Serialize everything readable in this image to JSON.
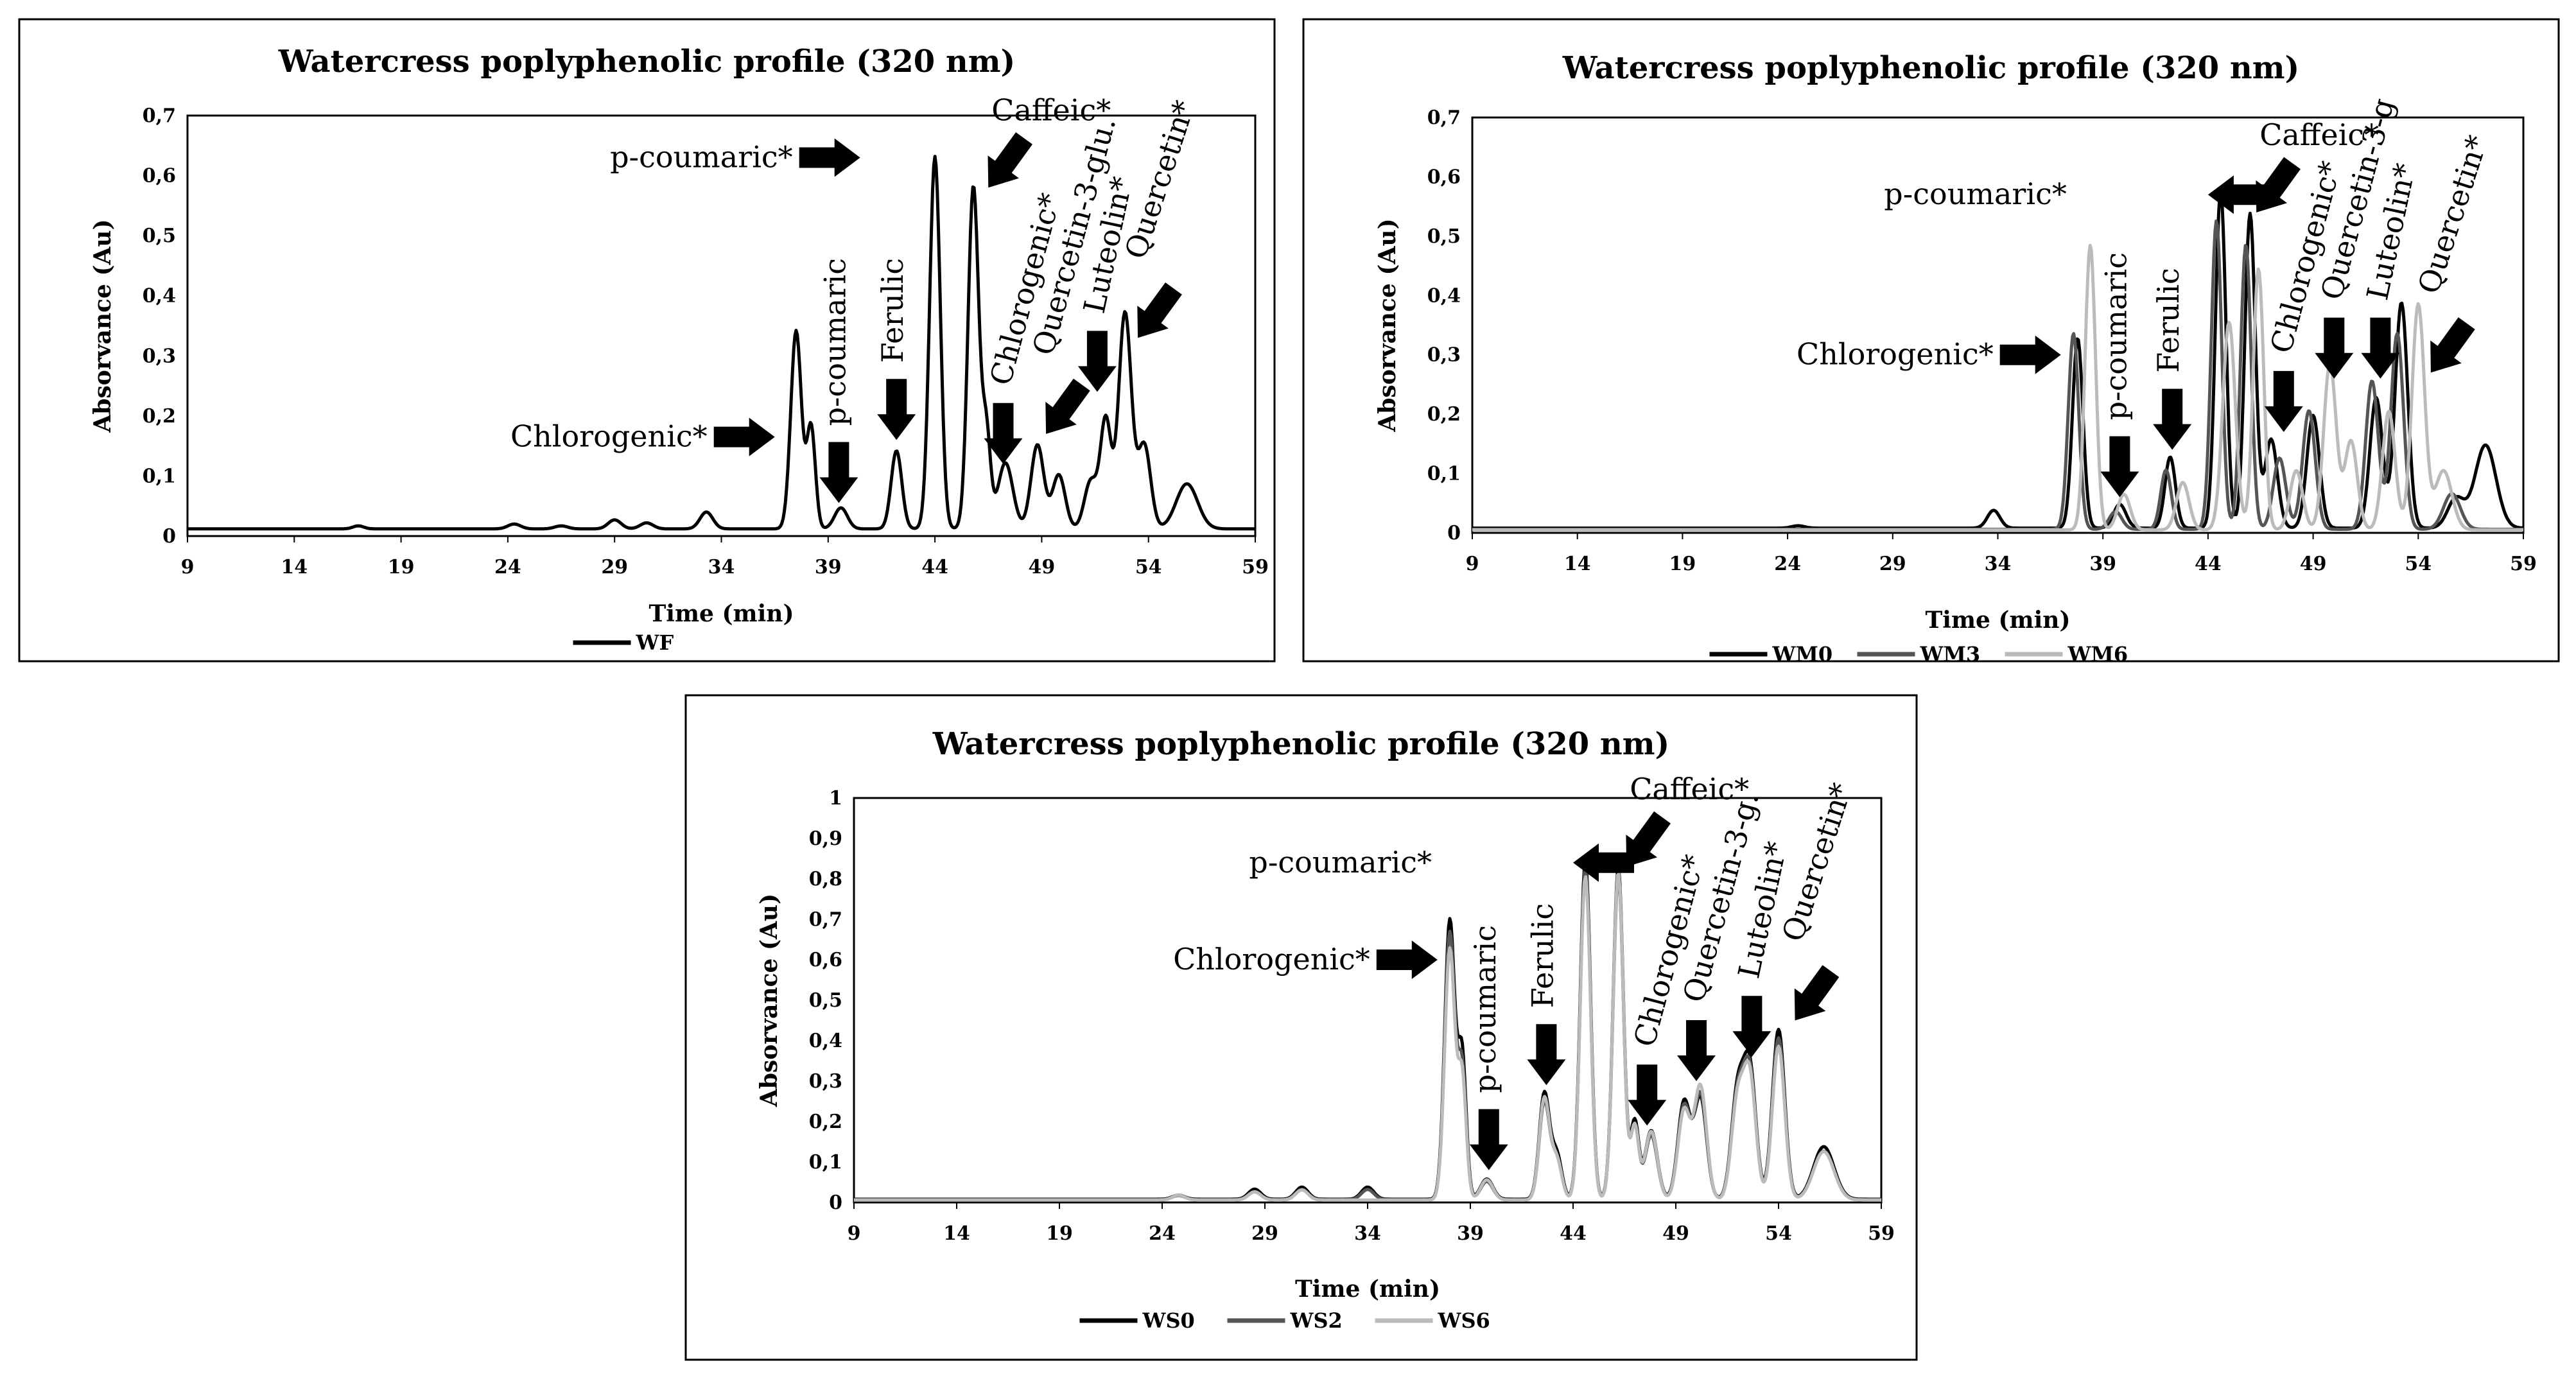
{
  "chart_data": [
    {
      "type": "line",
      "title": "Watercress poplyphenolic profile (320 nm)",
      "xlabel": "Time (min)",
      "ylabel": "Absorvance (Au)",
      "xlim": [
        9,
        59
      ],
      "ylim": [
        0,
        0.7
      ],
      "x_ticks": [
        "9",
        "14",
        "19",
        "24",
        "29",
        "34",
        "39",
        "44",
        "49",
        "54",
        "59"
      ],
      "y_ticks": [
        "0",
        "0,1",
        "0,2",
        "0,3",
        "0,4",
        "0,5",
        "0,6",
        "0,7"
      ],
      "series": [
        {
          "name": "WF",
          "color": "#000000",
          "baseline": 0.012,
          "peaks": [
            [
              17.0,
              0.005,
              0.25
            ],
            [
              24.3,
              0.008,
              0.3
            ],
            [
              26.5,
              0.005,
              0.3
            ],
            [
              29,
              0.015,
              0.3
            ],
            [
              30.5,
              0.01,
              0.3
            ],
            [
              33.3,
              0.028,
              0.3
            ],
            [
              37.5,
              0.33,
              0.25
            ],
            [
              38.2,
              0.17,
              0.2
            ],
            [
              39.6,
              0.035,
              0.3
            ],
            [
              42.2,
              0.13,
              0.25
            ],
            [
              44.0,
              0.62,
              0.25
            ],
            [
              45.8,
              0.57,
              0.25
            ],
            [
              46.4,
              0.16,
              0.2
            ],
            [
              47.3,
              0.11,
              0.35
            ],
            [
              48.8,
              0.14,
              0.3
            ],
            [
              49.8,
              0.09,
              0.3
            ],
            [
              51.3,
              0.08,
              0.3
            ],
            [
              52.0,
              0.18,
              0.25
            ],
            [
              52.9,
              0.36,
              0.3
            ],
            [
              53.8,
              0.14,
              0.3
            ],
            [
              55.8,
              0.075,
              0.5
            ]
          ]
        }
      ],
      "annotations": [
        {
          "text": "p-coumaric*",
          "x": 40.5,
          "y": 0.63,
          "direction": "right",
          "rotate": 0
        },
        {
          "text": "Caffeic*",
          "x": 46.5,
          "y": 0.58,
          "direction": "down-left",
          "rotate": 0
        },
        {
          "text": "Chlorogenic*",
          "x": 36.5,
          "y": 0.165,
          "direction": "right",
          "rotate": 0
        },
        {
          "text": "p-coumaric",
          "x": 39.5,
          "y": 0.055,
          "direction": "down",
          "rotate": -90
        },
        {
          "text": "Ferulic",
          "x": 42.2,
          "y": 0.16,
          "direction": "down",
          "rotate": -90
        },
        {
          "text": "Chlorogenic*",
          "x": 47.2,
          "y": 0.12,
          "direction": "down",
          "rotate": -75
        },
        {
          "text": "Quercetin-3-glu.",
          "x": 49.2,
          "y": 0.17,
          "direction": "down-left",
          "rotate": -75
        },
        {
          "text": "Luteolin*",
          "x": 51.6,
          "y": 0.24,
          "direction": "down",
          "rotate": -78
        },
        {
          "text": "Quercetin*",
          "x": 53.5,
          "y": 0.33,
          "direction": "down-left",
          "rotate": -72
        }
      ]
    },
    {
      "type": "line",
      "title": "Watercress poplyphenolic profile (320 nm)",
      "xlabel": "Time (min)",
      "ylabel": "Absorvance (Au)",
      "xlim": [
        9,
        59
      ],
      "ylim": [
        0,
        0.7
      ],
      "x_ticks": [
        "9",
        "14",
        "19",
        "24",
        "29",
        "34",
        "39",
        "44",
        "49",
        "54",
        "59"
      ],
      "y_ticks": [
        "0",
        "0,1",
        "0,2",
        "0,3",
        "0,4",
        "0,5",
        "0,6",
        "0,7"
      ],
      "series": [
        {
          "name": "WM0",
          "color": "#000000",
          "baseline": 0.008,
          "peaks": [
            [
              24.5,
              0.004,
              0.3
            ],
            [
              33.8,
              0.03,
              0.3
            ],
            [
              37.8,
              0.32,
              0.25
            ],
            [
              39.8,
              0.04,
              0.3
            ],
            [
              42.2,
              0.12,
              0.25
            ],
            [
              44.6,
              0.57,
              0.25
            ],
            [
              46.0,
              0.53,
              0.25
            ],
            [
              47.0,
              0.15,
              0.3
            ],
            [
              49.0,
              0.19,
              0.3
            ],
            [
              52.0,
              0.22,
              0.3
            ],
            [
              53.2,
              0.38,
              0.3
            ],
            [
              55.8,
              0.05,
              0.4
            ],
            [
              57.2,
              0.14,
              0.5
            ]
          ]
        },
        {
          "name": "WM3",
          "color": "#555555",
          "baseline": 0.006,
          "peaks": [
            [
              37.6,
              0.33,
              0.25
            ],
            [
              39.6,
              0.03,
              0.3
            ],
            [
              42.0,
              0.1,
              0.25
            ],
            [
              44.4,
              0.52,
              0.25
            ],
            [
              45.8,
              0.48,
              0.25
            ],
            [
              47.4,
              0.12,
              0.3
            ],
            [
              48.8,
              0.2,
              0.3
            ],
            [
              51.8,
              0.25,
              0.3
            ],
            [
              53.0,
              0.33,
              0.3
            ],
            [
              55.6,
              0.06,
              0.4
            ]
          ]
        },
        {
          "name": "WM6",
          "color": "#bbbbbb",
          "baseline": 0.005,
          "peaks": [
            [
              38.4,
              0.48,
              0.25
            ],
            [
              40.0,
              0.06,
              0.3
            ],
            [
              42.8,
              0.08,
              0.3
            ],
            [
              45.0,
              0.35,
              0.3
            ],
            [
              46.4,
              0.44,
              0.25
            ],
            [
              48.2,
              0.1,
              0.3
            ],
            [
              49.8,
              0.28,
              0.3
            ],
            [
              50.8,
              0.15,
              0.3
            ],
            [
              52.6,
              0.2,
              0.3
            ],
            [
              54.0,
              0.38,
              0.3
            ],
            [
              55.2,
              0.1,
              0.4
            ]
          ]
        }
      ],
      "annotations": [
        {
          "text": "p-coumaric*",
          "x": 44.0,
          "y": 0.57,
          "direction": "left",
          "rotate": 0
        },
        {
          "text": "Caffeic*",
          "x": 46.3,
          "y": 0.54,
          "direction": "down-left",
          "rotate": 0
        },
        {
          "text": "Chlorogenic*",
          "x": 37.0,
          "y": 0.3,
          "direction": "right",
          "rotate": 0
        },
        {
          "text": "p-coumaric",
          "x": 39.8,
          "y": 0.06,
          "direction": "down",
          "rotate": -90
        },
        {
          "text": "Ferulic",
          "x": 42.3,
          "y": 0.14,
          "direction": "down",
          "rotate": -90
        },
        {
          "text": "Chlorogenic*",
          "x": 47.6,
          "y": 0.17,
          "direction": "down",
          "rotate": -75
        },
        {
          "text": "Quercetin-3-g",
          "x": 50.0,
          "y": 0.26,
          "direction": "down",
          "rotate": -75
        },
        {
          "text": "Luteolin*",
          "x": 52.2,
          "y": 0.26,
          "direction": "down",
          "rotate": -78
        },
        {
          "text": "Quercetin*",
          "x": 54.6,
          "y": 0.27,
          "direction": "down-left",
          "rotate": -72
        }
      ]
    },
    {
      "type": "line",
      "title": "Watercress poplyphenolic profile (320 nm)",
      "xlabel": "Time (min)",
      "ylabel": "Absorvance (Au)",
      "xlim": [
        9,
        59
      ],
      "ylim": [
        0,
        1
      ],
      "x_ticks": [
        "9",
        "14",
        "19",
        "24",
        "29",
        "34",
        "39",
        "44",
        "49",
        "54",
        "59"
      ],
      "y_ticks": [
        "0",
        "0,1",
        "0,2",
        "0,3",
        "0,4",
        "0,5",
        "0,6",
        "0,7",
        "0,8",
        "0,9",
        "1"
      ],
      "series": [
        {
          "name": "WS0",
          "color": "#000000",
          "baseline": 0.008,
          "peaks": [
            [
              24.8,
              0.01,
              0.3
            ],
            [
              28.5,
              0.025,
              0.3
            ],
            [
              30.8,
              0.03,
              0.3
            ],
            [
              34.0,
              0.03,
              0.3
            ],
            [
              38.0,
              0.69,
              0.25
            ],
            [
              38.6,
              0.35,
              0.2
            ],
            [
              39.8,
              0.05,
              0.3
            ],
            [
              42.6,
              0.26,
              0.25
            ],
            [
              43.2,
              0.11,
              0.25
            ],
            [
              44.6,
              0.84,
              0.25
            ],
            [
              46.2,
              0.82,
              0.25
            ],
            [
              47.0,
              0.19,
              0.2
            ],
            [
              47.8,
              0.17,
              0.3
            ],
            [
              49.4,
              0.24,
              0.3
            ],
            [
              50.2,
              0.25,
              0.3
            ],
            [
              52.0,
              0.26,
              0.3
            ],
            [
              52.6,
              0.32,
              0.3
            ],
            [
              54.0,
              0.42,
              0.3
            ],
            [
              56.2,
              0.13,
              0.5
            ]
          ]
        },
        {
          "name": "WS2",
          "color": "#555555",
          "baseline": 0.007,
          "peaks": [
            [
              24.8,
              0.01,
              0.3
            ],
            [
              28.5,
              0.02,
              0.3
            ],
            [
              30.8,
              0.025,
              0.3
            ],
            [
              34.0,
              0.025,
              0.3
            ],
            [
              38.0,
              0.66,
              0.25
            ],
            [
              38.6,
              0.32,
              0.2
            ],
            [
              39.8,
              0.045,
              0.3
            ],
            [
              42.6,
              0.24,
              0.25
            ],
            [
              43.2,
              0.1,
              0.25
            ],
            [
              44.6,
              0.82,
              0.25
            ],
            [
              46.2,
              0.8,
              0.25
            ],
            [
              47.0,
              0.18,
              0.2
            ],
            [
              47.8,
              0.16,
              0.3
            ],
            [
              49.4,
              0.23,
              0.3
            ],
            [
              50.2,
              0.26,
              0.3
            ],
            [
              52.0,
              0.25,
              0.3
            ],
            [
              52.6,
              0.31,
              0.3
            ],
            [
              54.0,
              0.4,
              0.3
            ],
            [
              56.2,
              0.12,
              0.5
            ]
          ]
        },
        {
          "name": "WS6",
          "color": "#bbbbbb",
          "baseline": 0.006,
          "peaks": [
            [
              24.8,
              0.012,
              0.3
            ],
            [
              28.5,
              0.02,
              0.3
            ],
            [
              30.8,
              0.025,
              0.3
            ],
            [
              38.0,
              0.62,
              0.25
            ],
            [
              38.6,
              0.3,
              0.2
            ],
            [
              39.8,
              0.05,
              0.3
            ],
            [
              42.6,
              0.25,
              0.25
            ],
            [
              43.2,
              0.1,
              0.25
            ],
            [
              44.6,
              0.8,
              0.25
            ],
            [
              46.2,
              0.81,
              0.25
            ],
            [
              47.0,
              0.18,
              0.2
            ],
            [
              47.8,
              0.17,
              0.3
            ],
            [
              49.4,
              0.22,
              0.3
            ],
            [
              50.2,
              0.28,
              0.3
            ],
            [
              52.0,
              0.24,
              0.3
            ],
            [
              52.6,
              0.3,
              0.3
            ],
            [
              54.0,
              0.38,
              0.3
            ],
            [
              56.2,
              0.12,
              0.5
            ]
          ]
        }
      ],
      "annotations": [
        {
          "text": "p-coumaric*",
          "x": 44.0,
          "y": 0.84,
          "direction": "left",
          "rotate": 0
        },
        {
          "text": "Caffeic*",
          "x": 46.6,
          "y": 0.83,
          "direction": "down-left",
          "rotate": 0
        },
        {
          "text": "Chlorogenic*",
          "x": 37.4,
          "y": 0.6,
          "direction": "right",
          "rotate": 0
        },
        {
          "text": "p-coumaric",
          "x": 39.9,
          "y": 0.08,
          "direction": "down",
          "rotate": -90
        },
        {
          "text": "Ferulic",
          "x": 42.7,
          "y": 0.29,
          "direction": "down",
          "rotate": -90
        },
        {
          "text": "Chlorogenic*",
          "x": 47.6,
          "y": 0.19,
          "direction": "down",
          "rotate": -75
        },
        {
          "text": "Quercetin-3-g.",
          "x": 50.0,
          "y": 0.3,
          "direction": "down",
          "rotate": -75
        },
        {
          "text": "Luteolin*",
          "x": 52.7,
          "y": 0.36,
          "direction": "down",
          "rotate": -78
        },
        {
          "text": "Quercetin*",
          "x": 54.8,
          "y": 0.45,
          "direction": "down-left",
          "rotate": -72
        }
      ]
    }
  ]
}
